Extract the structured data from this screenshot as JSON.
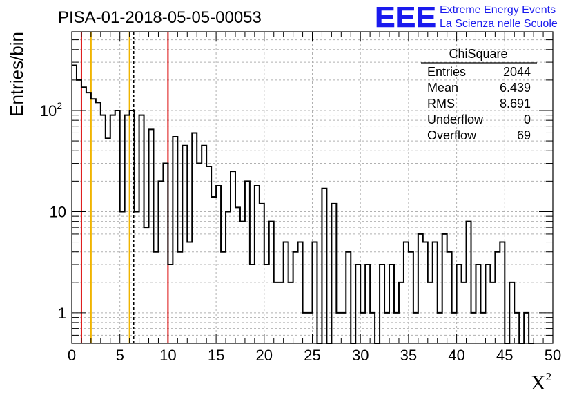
{
  "chart_data": {
    "type": "histogram",
    "title": "PISA-01-2018-05-05-00053",
    "xlabel": "X",
    "xlabel_superscript": "2",
    "ylabel": "Entries/bin",
    "xlim": [
      0,
      50
    ],
    "ylim": [
      0.5,
      600
    ],
    "yscale": "log",
    "grid": true,
    "x_ticks": [
      "0",
      "5",
      "10",
      "15",
      "20",
      "25",
      "30",
      "35",
      "40",
      "45",
      "50"
    ],
    "y_ticks": [
      {
        "value": 1,
        "label": "1"
      },
      {
        "value": 10,
        "label": "10"
      },
      {
        "value": 100,
        "label": "10",
        "sup": "2"
      }
    ],
    "bin_width": 0.5,
    "bin_start": 0,
    "counts": [
      280,
      200,
      170,
      150,
      130,
      120,
      90,
      53,
      90,
      100,
      10,
      90,
      100,
      10,
      90,
      7,
      65,
      4,
      20,
      30,
      3,
      55,
      4,
      45,
      5,
      60,
      30,
      45,
      28,
      14,
      18,
      4,
      10,
      25,
      11,
      8,
      20,
      3,
      18,
      12,
      3,
      8,
      2,
      2,
      5,
      2,
      4,
      5,
      1,
      1,
      5,
      0,
      17,
      0,
      12,
      1,
      1,
      4,
      0,
      3,
      1,
      3,
      1,
      0,
      3,
      1,
      3,
      1,
      2,
      5,
      4,
      1,
      6,
      5,
      2,
      5,
      1,
      6,
      4,
      1,
      3,
      2,
      8,
      1,
      3,
      1,
      3,
      2,
      4,
      5,
      0,
      2,
      1,
      0,
      1,
      0
    ],
    "vertical_lines": [
      {
        "x": 1,
        "color": "#dd1111",
        "style": "solid"
      },
      {
        "x": 2,
        "color": "#f0b400",
        "style": "solid"
      },
      {
        "x": 6,
        "color": "#f0b400",
        "style": "solid"
      },
      {
        "x": 6.439,
        "color": "#000000",
        "style": "dashed"
      },
      {
        "x": 10,
        "color": "#dd1111",
        "style": "solid"
      }
    ],
    "stats_box": {
      "title": "ChiSquare",
      "rows": [
        {
          "label": "Entries",
          "value": "2044"
        },
        {
          "label": "Mean",
          "value": "6.439"
        },
        {
          "label": "RMS",
          "value": "8.691"
        },
        {
          "label": "Underflow",
          "value": "0"
        },
        {
          "label": "Overflow",
          "value": "69"
        }
      ]
    }
  },
  "logo": {
    "mark": "EEE",
    "line1": "Extreme Energy Events",
    "line2": "La Scienza nelle Scuole",
    "color": "#1a1aee"
  }
}
